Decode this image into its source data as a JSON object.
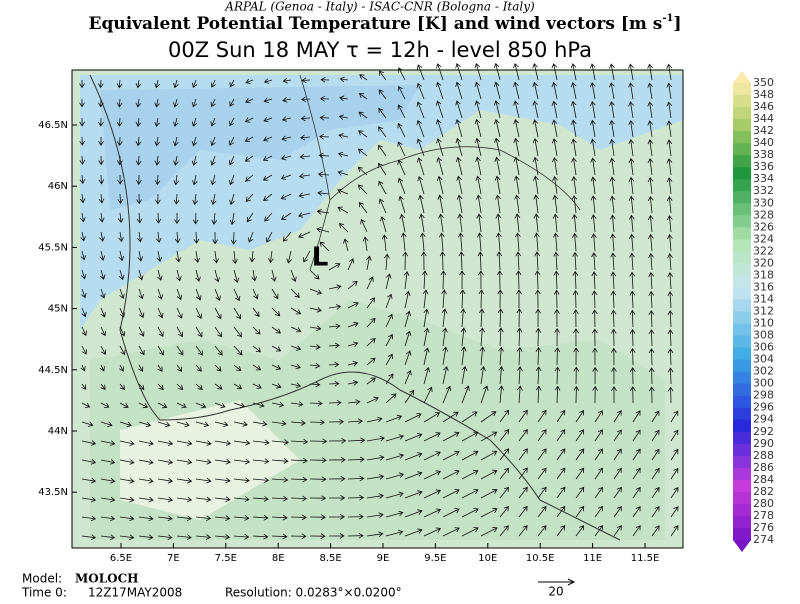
{
  "header": {
    "source": "ARPAL (Genoa - Italy)  -  ISAC-CNR (Bologna - Italy)",
    "title": "Equivalent Potential Temperature [K] and wind vectors [m s",
    "title_sup": "-1",
    "title_end": "]",
    "subtitle": "00Z Sun 18 MAY  τ = 12h  -  level 850 hPa"
  },
  "map": {
    "lat_labels": [
      "46.5N",
      "46N",
      "45.5N",
      "45N",
      "44.5N",
      "44N",
      "43.5N"
    ],
    "lon_labels": [
      "6.5E",
      "7E",
      "7.5E",
      "8E",
      "8.5E",
      "9E",
      "9.5E",
      "10E",
      "10.5E",
      "11E",
      "11.5E"
    ],
    "low_label": "L"
  },
  "colorbar": {
    "labels": [
      "350",
      "348",
      "346",
      "344",
      "342",
      "340",
      "338",
      "336",
      "334",
      "332",
      "330",
      "328",
      "326",
      "324",
      "322",
      "320",
      "318",
      "316",
      "314",
      "312",
      "310",
      "308",
      "306",
      "304",
      "302",
      "300",
      "298",
      "296",
      "294",
      "292",
      "290",
      "288",
      "286",
      "284",
      "282",
      "280",
      "278",
      "276",
      "274"
    ]
  },
  "footer": {
    "model_label": "Model:",
    "model": "MOLOCH",
    "time_label": "Time 0:",
    "time": "12Z17MAY2008",
    "resolution": "Resolution: 0.0283°×0.0200°",
    "vector_ref": "20"
  }
}
